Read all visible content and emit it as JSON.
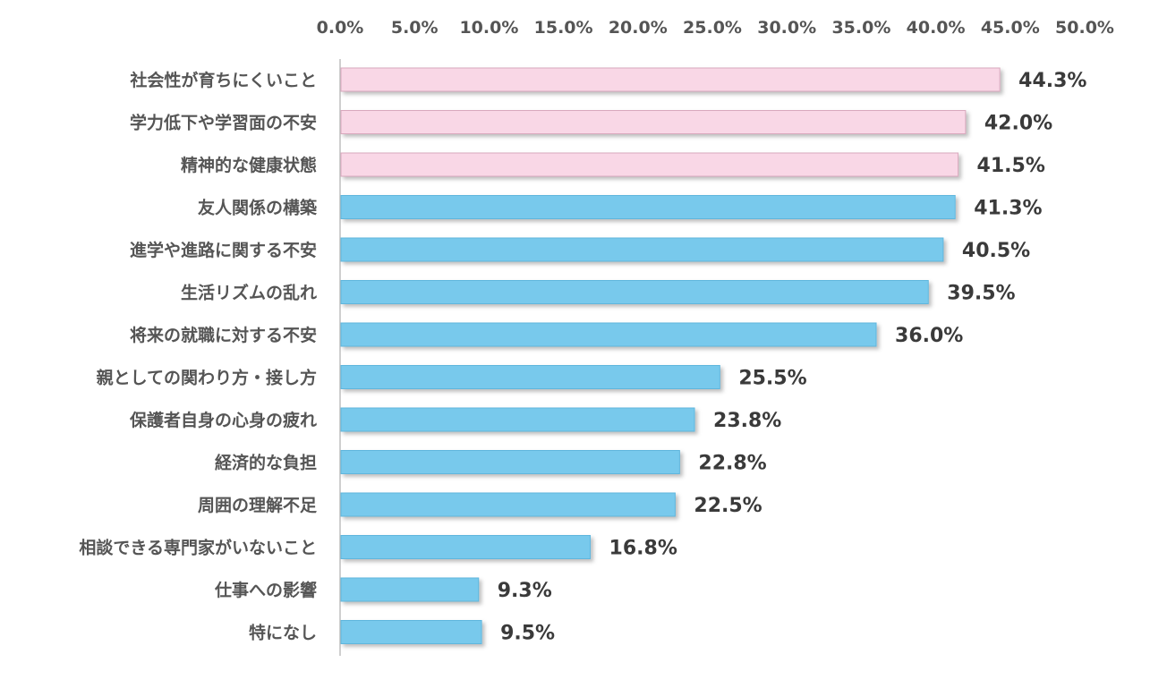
{
  "chart_data": {
    "type": "bar",
    "orientation": "horizontal",
    "categories": [
      "社会性が育ちにくいこと",
      "学力低下や学習面の不安",
      "精神的な健康状態",
      "友人関係の構築",
      "進学や進路に関する不安",
      "生活リズムの乱れ",
      "将来の就職に対する不安",
      "親としての関わり方・接し方",
      "保護者自身の心身の疲れ",
      "経済的な負担",
      "周囲の理解不足",
      "相談できる専門家がいないこと",
      "仕事への影響",
      "特になし"
    ],
    "values": [
      44.3,
      42.0,
      41.5,
      41.3,
      40.5,
      39.5,
      36.0,
      25.5,
      23.8,
      22.8,
      22.5,
      16.8,
      9.3,
      9.5
    ],
    "value_labels": [
      "44.3%",
      "42.0%",
      "41.5%",
      "41.3%",
      "40.5%",
      "39.5%",
      "36.0%",
      "25.5%",
      "23.8%",
      "22.8%",
      "22.5%",
      "16.8%",
      "9.3%",
      "9.5%"
    ],
    "x_ticks": [
      "0.0%",
      "5.0%",
      "10.0%",
      "15.0%",
      "20.0%",
      "25.0%",
      "30.0%",
      "35.0%",
      "40.0%",
      "45.0%",
      "50.0%"
    ],
    "xlim": [
      0,
      50
    ],
    "x_axis_position": "top",
    "grid": false,
    "legend": "none",
    "highlighted_count": 3,
    "colors": {
      "highlight_bar": "#f9d7e6",
      "highlight_border": "#d9a8bd",
      "bar": "#78c9ec",
      "bar_border": "#5fb6dd",
      "axis": "#bfbfbf",
      "text": "#555555",
      "value_text": "#3a3a3a"
    },
    "title": "",
    "xlabel": "",
    "ylabel": ""
  }
}
